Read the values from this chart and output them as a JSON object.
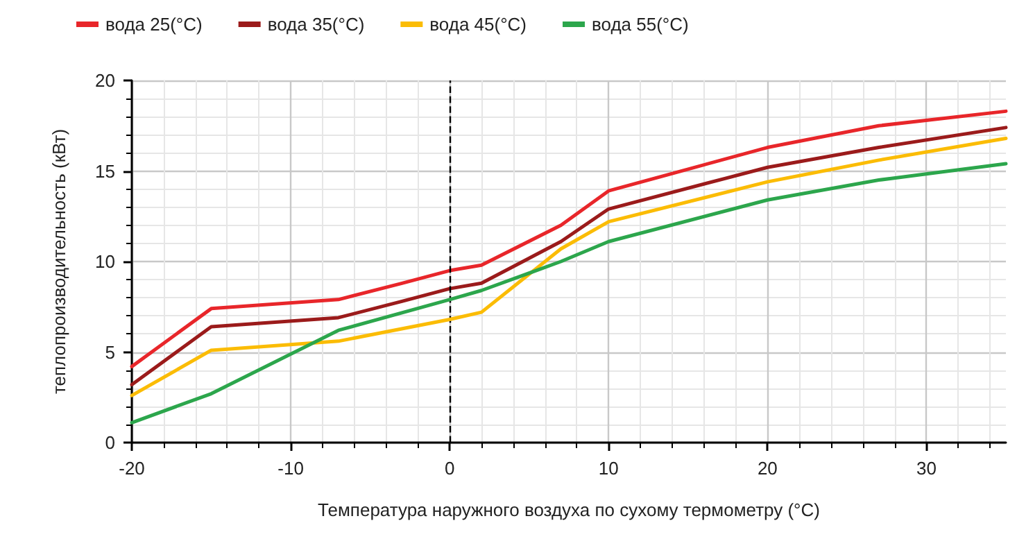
{
  "chart_data": {
    "type": "line",
    "xlabel": "Температура наружного воздуха по сухому термометру (°C)",
    "ylabel": "теплопроизводительность (кВт)",
    "xlim": [
      -20,
      35
    ],
    "xticks": [
      -20,
      -10,
      0,
      10,
      20,
      30
    ],
    "ylim": [
      0,
      20
    ],
    "yticks": [
      0,
      5,
      10,
      15,
      20
    ],
    "grid": true,
    "legend": "top",
    "marker": "none",
    "line_style": "solid",
    "ref_lines": [
      {
        "axis": "x",
        "value": 0,
        "color": "#000000",
        "line_style": "dashed"
      }
    ],
    "series": [
      {
        "name": "вода 25(°C)",
        "color": "#e8262a",
        "x": [
          -20,
          -15,
          -7,
          -3,
          0,
          2,
          7,
          10,
          20,
          27,
          35
        ],
        "values": [
          4.2,
          7.4,
          7.9,
          8.8,
          9.5,
          9.8,
          12.0,
          13.9,
          16.3,
          17.5,
          18.3
        ]
      },
      {
        "name": "вода 35(°C)",
        "color": "#9b1b1b",
        "x": [
          -20,
          -15,
          -7,
          -3,
          0,
          2,
          7,
          10,
          20,
          27,
          35
        ],
        "values": [
          3.2,
          6.4,
          6.9,
          7.8,
          8.5,
          8.8,
          11.1,
          12.9,
          15.2,
          16.3,
          17.4
        ]
      },
      {
        "name": "вода 45(°C)",
        "color": "#fbbc05",
        "x": [
          -20,
          -15,
          -7,
          0,
          2,
          7,
          10,
          20,
          27,
          35
        ],
        "values": [
          2.6,
          5.1,
          5.6,
          6.8,
          7.2,
          10.7,
          12.2,
          14.4,
          15.6,
          16.8
        ]
      },
      {
        "name": "вода 55(°C)",
        "color": "#2ca64c",
        "x": [
          -20,
          -15,
          -7,
          0,
          2,
          7,
          10,
          20,
          27,
          35
        ],
        "values": [
          1.1,
          2.7,
          6.2,
          7.9,
          8.4,
          10.0,
          11.1,
          13.4,
          14.5,
          15.4
        ]
      }
    ]
  }
}
